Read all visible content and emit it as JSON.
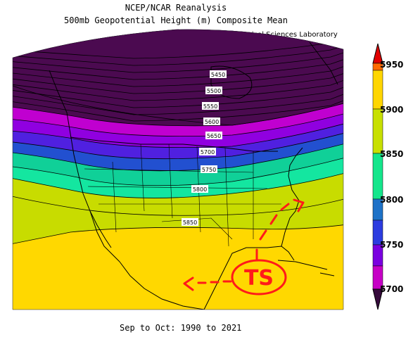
{
  "header": {
    "line1": "NCEP/NCAR Reanalysis",
    "line2": "500mb Geopotential Height (m) Composite Mean",
    "credit": "NOAA Physical Sciences Laboratory"
  },
  "footer": {
    "period": "Sep to Oct: 1990 to 2021"
  },
  "contour_labels": [
    "5450",
    "5500",
    "5550",
    "5600",
    "5650",
    "5700",
    "5750",
    "5800",
    "5850"
  ],
  "colorbar": {
    "levels": [
      "5700",
      "5750",
      "5800",
      "5850",
      "5900",
      "5950"
    ],
    "colors": [
      "#c600c6",
      "#7a00e0",
      "#2c3ce0",
      "#1e72c8",
      "#14e68c",
      "#c8e000",
      "#ffd600",
      "#ff6a00",
      "#e10000"
    ],
    "below_color": "#360a3c"
  },
  "band_colors": {
    "deep_low": "#4b0a50",
    "purple": "#9000e0",
    "magenta": "#c000d0",
    "indigo": "#5020e0",
    "blue": "#2250d0",
    "teal": "#14e6a0",
    "green_teal": "#10c890",
    "yellow_green": "#c8dc00",
    "yellow": "#ffd800"
  },
  "annotation": {
    "text": "TS",
    "color": "#ff1a1a"
  }
}
